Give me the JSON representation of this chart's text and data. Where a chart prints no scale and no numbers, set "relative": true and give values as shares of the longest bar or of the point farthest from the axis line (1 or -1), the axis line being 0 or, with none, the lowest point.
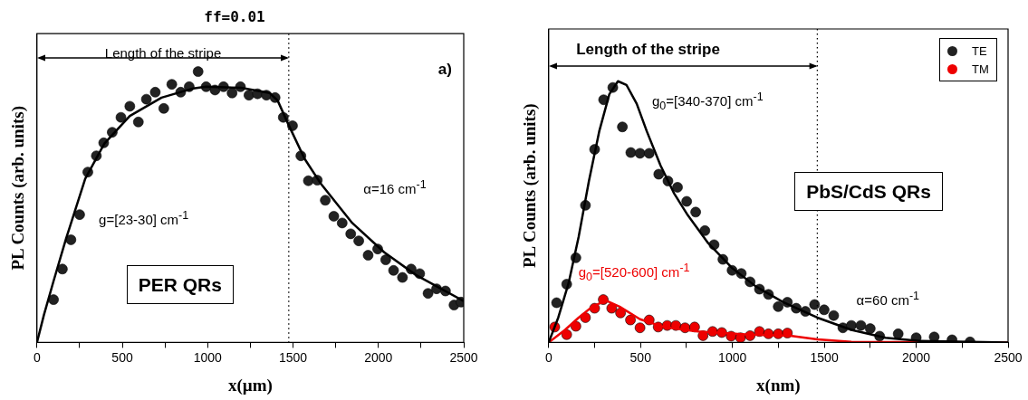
{
  "chart_data": [
    {
      "type": "scatter",
      "title": "ff=0.01",
      "xlabel": "x(µm)",
      "ylabel": "PL Counts (arb. units)",
      "relative": true,
      "marker": "circle",
      "xlim": [
        0,
        2500
      ],
      "xticks": [
        0,
        {
          "value": 250,
          "label": null
        },
        500,
        {
          "value": 750,
          "label": null
        },
        1000,
        {
          "value": 1250,
          "label": null
        },
        1500,
        {
          "value": 1750,
          "label": null
        },
        2000,
        {
          "value": 2250,
          "label": null
        },
        2500
      ],
      "series": [
        {
          "color": "#222222",
          "x": [
            97,
            149,
            199,
            250,
            298,
            348,
            391,
            441,
            492,
            544,
            594,
            641,
            693,
            743,
            790,
            842,
            892,
            944,
            991,
            1043,
            1093,
            1143,
            1192,
            1242,
            1292,
            1344,
            1395,
            1443,
            1497,
            1546,
            1590,
            1642,
            1689,
            1739,
            1788,
            1838,
            1885,
            1940,
            1996,
            2043,
            2089,
            2141,
            2192,
            2242,
            2291,
            2341,
            2393,
            2443,
            2484
          ],
          "values": [
            0.158,
            0.271,
            0.379,
            0.472,
            0.629,
            0.689,
            0.737,
            0.776,
            0.831,
            0.872,
            0.814,
            0.898,
            0.924,
            0.864,
            0.953,
            0.924,
            0.944,
            1,
            0.944,
            0.932,
            0.944,
            0.921,
            0.944,
            0.913,
            0.918,
            0.913,
            0.904,
            0.831,
            0.8,
            0.689,
            0.597,
            0.599,
            0.525,
            0.466,
            0.441,
            0.401,
            0.375,
            0.322,
            0.345,
            0.305,
            0.266,
            0.24,
            0.271,
            0.254,
            0.181,
            0.198,
            0.19,
            0.138,
            0.149
          ]
        },
        {
          "type": "line",
          "marker": "none",
          "color": "#000000",
          "x": [
            0,
            41,
            97,
            171,
            283,
            395,
            544,
            730,
            916,
            991,
            1196,
            1363,
            1410,
            1475,
            1568,
            1661,
            1847,
            2034,
            2220,
            2499
          ],
          "values": [
            0,
            0.102,
            0.226,
            0.384,
            0.605,
            0.734,
            0.836,
            0.904,
            0.938,
            0.944,
            0.94,
            0.921,
            0.893,
            0.802,
            0.678,
            0.588,
            0.441,
            0.333,
            0.249,
            0.153
          ]
        }
      ],
      "ref_lines": [
        {
          "axis": "x",
          "value": 1475,
          "line_style": "dotted"
        }
      ],
      "annotations": [
        "Length of the stripe",
        "a)",
        "g=[23-30] cm$^{-1}$",
        "α=16 cm$^{-1}$",
        "PER QRs"
      ]
    },
    {
      "type": "scatter",
      "xlabel": "x(nm)",
      "ylabel": "PL Counts (arb. units)",
      "relative": true,
      "marker": "circle",
      "legend": "top right",
      "xlim": [
        0,
        2500
      ],
      "xticks": [
        0,
        {
          "value": 250,
          "label": null
        },
        500,
        {
          "value": 750,
          "label": null
        },
        1000,
        {
          "value": 1250,
          "label": null
        },
        1500,
        {
          "value": 1750,
          "label": null
        },
        2000,
        {
          "value": 2250,
          "label": null
        },
        2500
      ],
      "series": [
        {
          "name": "TE",
          "color": "#222222",
          "x": [
            43,
            98,
            148,
            200,
            250,
            299,
            349,
            401,
            447,
            497,
            547,
            599,
            649,
            701,
            751,
            800,
            850,
            900,
            948,
            998,
            1048,
            1096,
            1147,
            1196,
            1249,
            1299,
            1347,
            1397,
            1447,
            1499,
            1551,
            1601,
            1647,
            1699,
            1750,
            1801,
            1902,
            2000,
            2098,
            2195,
            2293
          ],
          "values": [
            0.152,
            0.223,
            0.324,
            0.525,
            0.739,
            0.929,
            0.976,
            0.825,
            0.727,
            0.724,
            0.724,
            0.644,
            0.618,
            0.594,
            0.54,
            0.499,
            0.428,
            0.374,
            0.318,
            0.276,
            0.264,
            0.232,
            0.204,
            0.184,
            0.137,
            0.154,
            0.131,
            0.119,
            0.145,
            0.125,
            0.103,
            0.056,
            0.065,
            0.065,
            0.053,
            0.024,
            0.033,
            0.018,
            0.021,
            0.01,
            0.002
          ]
        },
        {
          "type": "line",
          "marker": "none",
          "color": "#000000",
          "x": [
            0,
            52,
            108,
            163,
            219,
            275,
            330,
            377,
            423,
            479,
            534,
            609,
            683,
            757,
            868,
            998,
            1128,
            1276,
            1462,
            1647,
            1833,
            2019,
            2500
          ],
          "values": [
            0,
            0.095,
            0.226,
            0.404,
            0.618,
            0.808,
            0.95,
            1,
            0.986,
            0.914,
            0.808,
            0.677,
            0.57,
            0.487,
            0.38,
            0.285,
            0.214,
            0.154,
            0.095,
            0.048,
            0.018,
            0.006,
            0
          ]
        },
        {
          "name": "TM",
          "color": "#ee0000",
          "x": [
            33,
            98,
            148,
            200,
            250,
            297,
            343,
            391,
            445,
            497,
            547,
            596,
            645,
            692,
            742,
            794,
            840,
            892,
            942,
            993,
            1044,
            1096,
            1147,
            1196,
            1249,
            1299
          ],
          "values": [
            0.059,
            0.03,
            0.062,
            0.095,
            0.131,
            0.164,
            0.131,
            0.113,
            0.086,
            0.056,
            0.086,
            0.059,
            0.065,
            0.065,
            0.056,
            0.059,
            0.026,
            0.042,
            0.038,
            0.024,
            0.018,
            0.026,
            0.042,
            0.033,
            0.033,
            0.036
          ]
        },
        {
          "type": "line",
          "marker": "none",
          "color": "#ee0000",
          "x": [
            0,
            89,
            163,
            237,
            312,
            386,
            497,
            627,
            812,
            1091,
            1314,
            1462,
            1647,
            2500
          ],
          "values": [
            0,
            0.048,
            0.095,
            0.137,
            0.16,
            0.137,
            0.089,
            0.059,
            0.042,
            0.03,
            0.026,
            0.012,
            0.002,
            0
          ]
        }
      ],
      "ref_lines": [
        {
          "axis": "x",
          "value": 1462,
          "line_style": "dotted"
        }
      ],
      "annotations": [
        "Length of the stripe",
        "g$_{0}$=[340-370] cm$^{-1}$",
        "g$_{0}$=[520-600] cm$^{-1}$",
        "α=60 cm$^{-1}$",
        "PbS/CdS QRs"
      ]
    }
  ]
}
